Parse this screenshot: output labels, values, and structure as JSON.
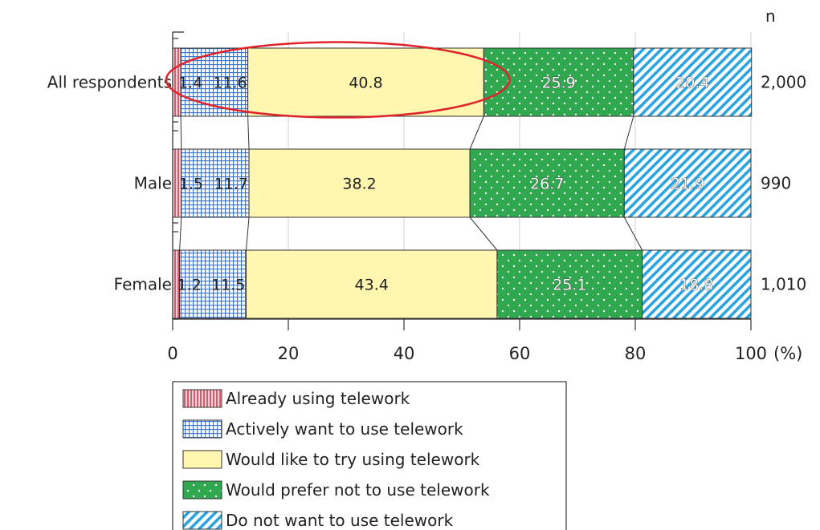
{
  "chart_data": {
    "type": "bar",
    "orientation": "horizontal",
    "stacked": true,
    "categories": [
      "All respondents",
      "Male",
      "Female"
    ],
    "series": [
      {
        "name": "Already using telework",
        "values": [
          1.4,
          1.5,
          1.2
        ],
        "color": "#f6a7b6",
        "stroke": "#d23b4f",
        "pattern": "vertical-lines"
      },
      {
        "name": "Actively want to use telework",
        "values": [
          11.6,
          11.7,
          11.5
        ],
        "color": "#ffffff",
        "stroke": "#3f76c9",
        "pattern": "grid"
      },
      {
        "name": "Would like to try using telework",
        "values": [
          40.8,
          38.2,
          43.4
        ],
        "color": "#fff6b0",
        "stroke": "#333333",
        "pattern": "solid"
      },
      {
        "name": "Would prefer not to use telework",
        "values": [
          25.9,
          26.7,
          25.1
        ],
        "color": "#2fa84f",
        "stroke": "#ffffff",
        "pattern": "dots"
      },
      {
        "name": "Do not want to use telework",
        "values": [
          20.4,
          21.9,
          18.8
        ],
        "color": "#ffffff",
        "stroke": "#2aa3e0",
        "pattern": "diagonal"
      }
    ],
    "n_label": "n",
    "n_values": [
      "2,000",
      "990",
      "1,010"
    ],
    "xlim": [
      0,
      100
    ],
    "xticks": [
      "0",
      "20",
      "40",
      "60",
      "80",
      "100"
    ],
    "x_unit": "(%)",
    "grid": true,
    "legend": "bottom-left",
    "highlight": {
      "category": "All respondents",
      "series": [
        "Already using telework",
        "Actively want to use telework",
        "Would like to try using telework"
      ],
      "shape": "ellipse",
      "color": "#e0232a"
    }
  }
}
